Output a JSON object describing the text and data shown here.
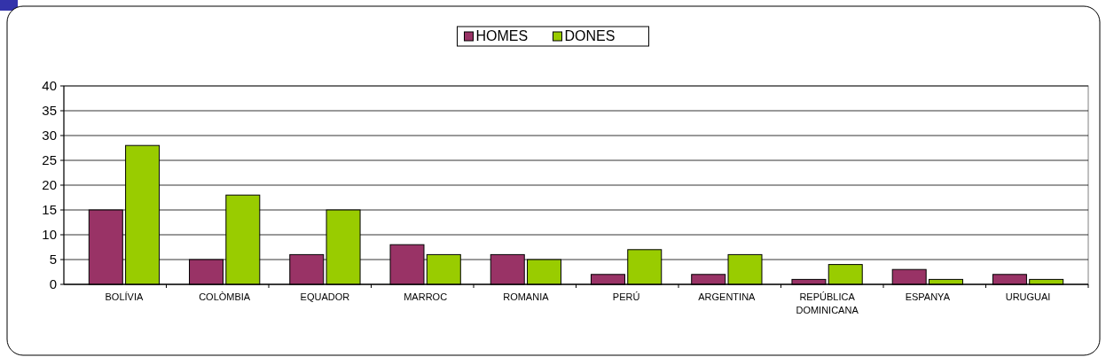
{
  "chart_data": {
    "type": "bar",
    "categories": [
      "BOLÍVIA",
      "COLÒMBIA",
      "EQUADOR",
      "MARROC",
      "ROMANIA",
      "PERÚ",
      "ARGENTINA",
      "REPÚBLICA DOMINICANA",
      "ESPANYA",
      "URUGUAI"
    ],
    "series": [
      {
        "name": "HOMES",
        "color": "#993366",
        "values": [
          15,
          5,
          6,
          8,
          6,
          2,
          2,
          1,
          3,
          2
        ]
      },
      {
        "name": "DONES",
        "color": "#99cc00",
        "values": [
          28,
          18,
          15,
          6,
          5,
          7,
          6,
          4,
          1,
          1
        ]
      }
    ],
    "ylim": [
      0,
      40
    ],
    "yticks": [
      0,
      5,
      10,
      15,
      20,
      25,
      30,
      35,
      40
    ],
    "grid": "y",
    "legend": "top"
  }
}
